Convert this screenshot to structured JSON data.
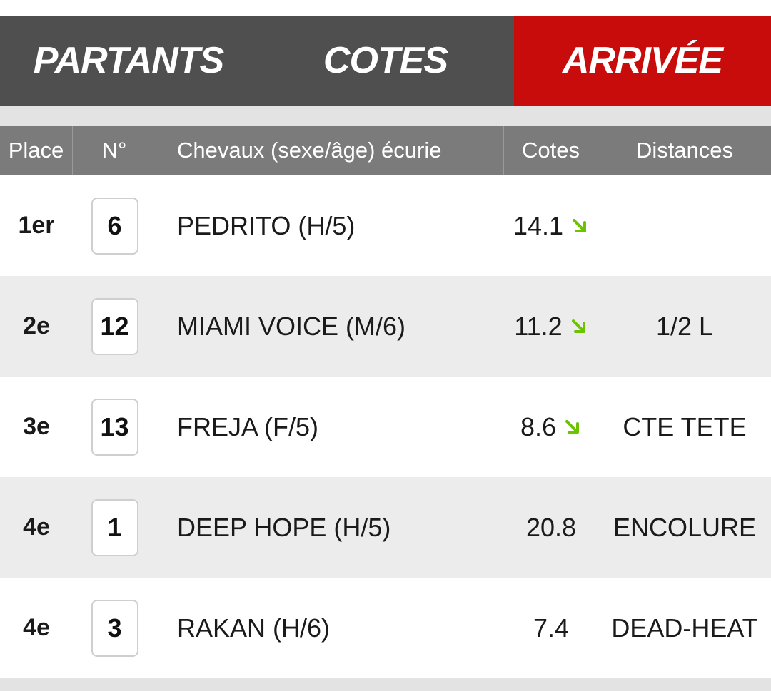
{
  "tabs": [
    {
      "label": "PARTANTS",
      "active": false
    },
    {
      "label": "COTES",
      "active": false
    },
    {
      "label": "ARRIVÉE",
      "active": true
    }
  ],
  "table": {
    "headers": {
      "place": "Place",
      "number": "N°",
      "horse": "Chevaux (sexe/âge) écurie",
      "odds": "Cotes",
      "distances": "Distances"
    },
    "rows": [
      {
        "place": "1er",
        "number": "6",
        "horse": "PEDRITO (H/5)",
        "odds": "14.1",
        "trend": "down-right-arrow-icon",
        "distance": ""
      },
      {
        "place": "2e",
        "number": "12",
        "horse": "MIAMI VOICE (M/6)",
        "odds": "11.2",
        "trend": "down-right-arrow-icon",
        "distance": "1/2 L"
      },
      {
        "place": "3e",
        "number": "13",
        "horse": "FREJA (F/5)",
        "odds": "8.6",
        "trend": "down-right-arrow-icon",
        "distance": "CTE TETE"
      },
      {
        "place": "4e",
        "number": "1",
        "horse": "DEEP HOPE (H/5)",
        "odds": "20.8",
        "trend": "",
        "distance": "ENCOLURE"
      },
      {
        "place": "4e",
        "number": "3",
        "horse": "RAKAN (H/6)",
        "odds": "7.4",
        "trend": "",
        "distance": "DEAD-HEAT"
      }
    ]
  },
  "colors": {
    "tab_bg": "#4f4f4f",
    "tab_active": "#c80b0b",
    "header_bg": "#7b7b7b",
    "trend_green": "#6cc400"
  }
}
